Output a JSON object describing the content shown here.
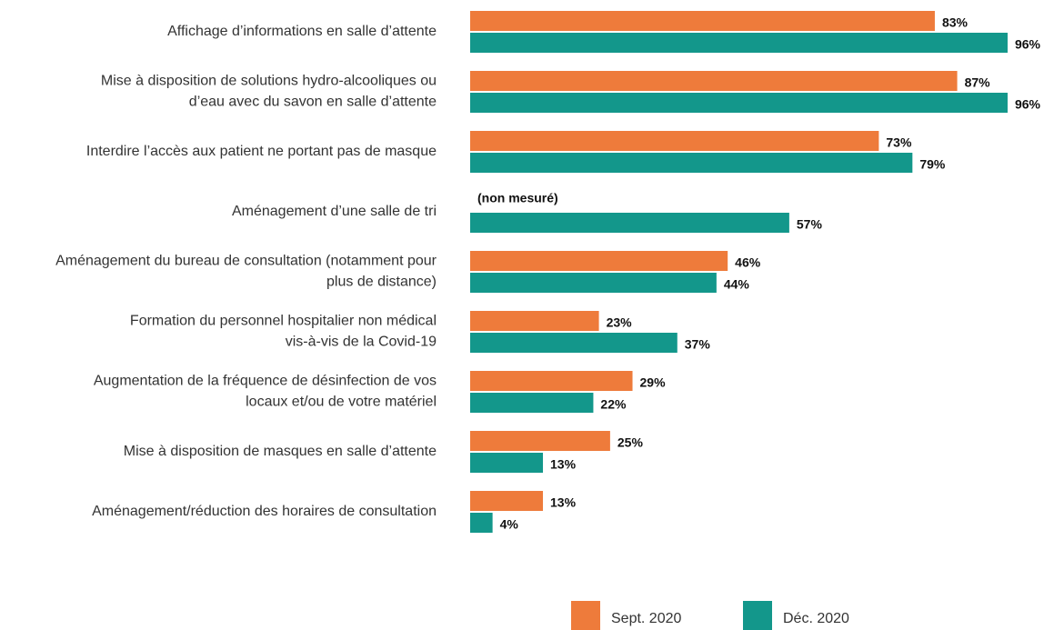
{
  "chart_data": {
    "type": "bar",
    "orientation": "horizontal",
    "categories": [
      [
        "Affichage d’informations en salle d’attente"
      ],
      [
        "Mise à disposition de solutions hydro-alcooliques ou",
        "d’eau avec du savon en salle d’attente"
      ],
      [
        "Interdire l’accès aux patient ne portant pas de masque"
      ],
      [
        "Aménagement d’une salle de tri"
      ],
      [
        "Aménagement du bureau de consultation (notamment pour",
        "plus de distance)"
      ],
      [
        "Formation du personnel hospitalier non médical",
        "vis-à-vis de la Covid-19"
      ],
      [
        "Augmentation de la fréquence de désinfection de vos",
        "locaux et/ou de votre matériel"
      ],
      [
        "Mise à disposition de masques en salle d’attente"
      ],
      [
        "Aménagement/réduction des horaires de consultation"
      ]
    ],
    "series": [
      {
        "name": "Sept. 2020",
        "color": "#ee7b3b",
        "values": [
          83,
          87,
          73,
          null,
          46,
          23,
          29,
          25,
          13
        ],
        "value_labels": [
          "83%",
          "87%",
          "73%",
          "(non mesuré)",
          "46%",
          "23%",
          "29%",
          "25%",
          "13%"
        ]
      },
      {
        "name": "Déc. 2020",
        "color": "#13978b",
        "values": [
          96,
          96,
          79,
          57,
          44,
          37,
          22,
          13,
          4
        ],
        "value_labels": [
          "96%",
          "96%",
          "79%",
          "57%",
          "44%",
          "37%",
          "22%",
          "13%",
          "4%"
        ]
      }
    ],
    "xlim": [
      0,
      100
    ]
  }
}
